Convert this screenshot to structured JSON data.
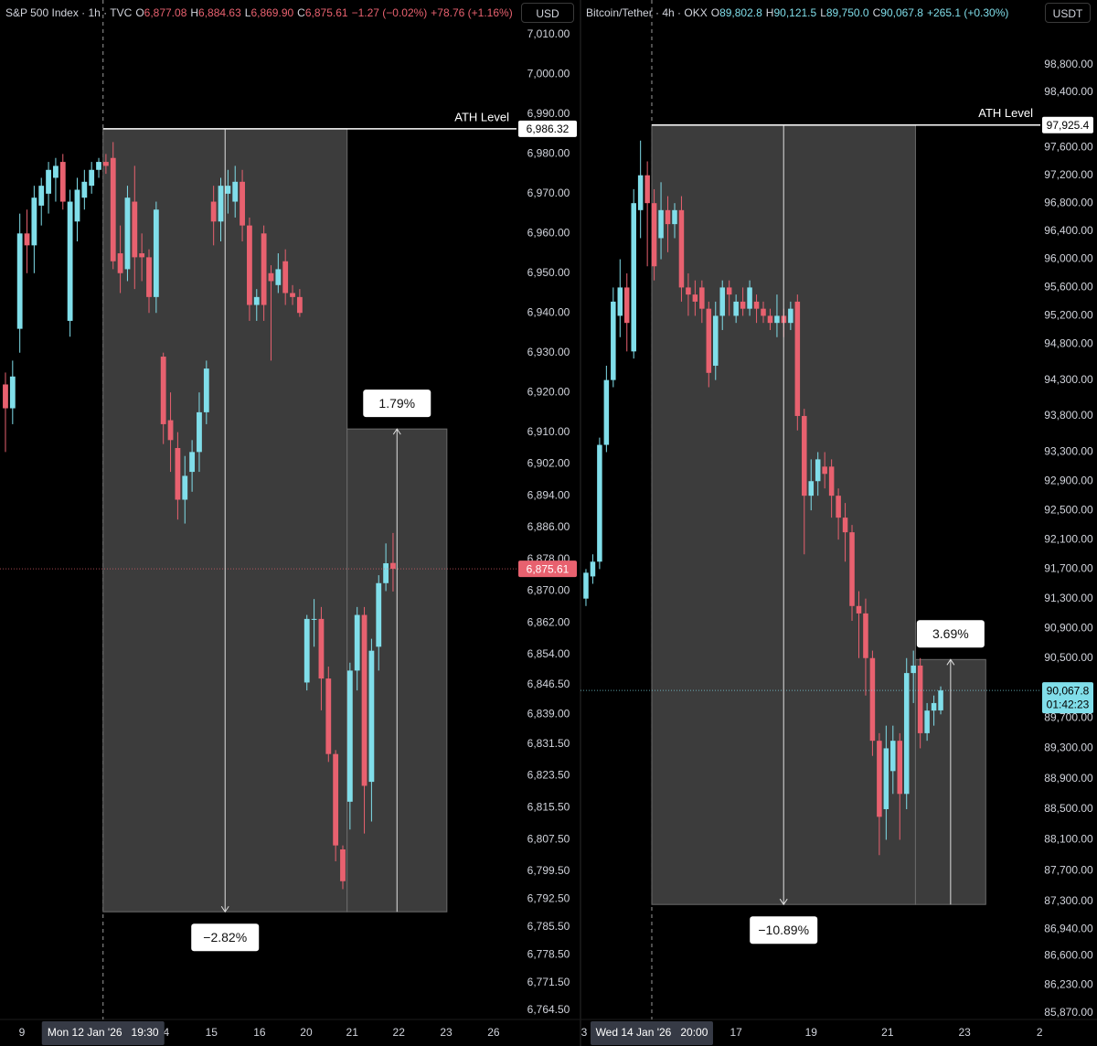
{
  "chart_data": [
    {
      "type": "candlestick",
      "header": {
        "symbol": "S&P 500 Index · 1h · TVC",
        "ohlc": [
          {
            "key": "O",
            "value": "6,877.08"
          },
          {
            "key": "H",
            "value": "6,884.63"
          },
          {
            "key": "L",
            "value": "6,869.90"
          },
          {
            "key": "C",
            "value": "6,875.61"
          }
        ],
        "changes": [
          "−1.27 (−0.02%)",
          "+78.76 (+1.16%)"
        ]
      },
      "currency": "USD",
      "up_color": "#80deea",
      "down_color": "#e8616f",
      "log_scale": false,
      "grid": false,
      "x": [
        0,
        1,
        2,
        3,
        4,
        5,
        6,
        7,
        8,
        9,
        10,
        11,
        12,
        13,
        14,
        15,
        16,
        17,
        18,
        19,
        20,
        21,
        22,
        23,
        24,
        25,
        26,
        27,
        28,
        29,
        30,
        31,
        32,
        33,
        34,
        35,
        36,
        37,
        38,
        39,
        40,
        41,
        42,
        43,
        44,
        45,
        46,
        47,
        48,
        49,
        50,
        51,
        52,
        53,
        54
      ],
      "open": [
        6922,
        6916,
        6936,
        6960,
        6957,
        6967,
        6970,
        6974,
        6978,
        6938,
        6963,
        6969,
        6972,
        6976,
        6978,
        6979,
        6955,
        6951,
        6968,
        6955,
        6954,
        6944,
        6929,
        6913,
        6906,
        6893,
        6900,
        6905,
        6915,
        6968,
        6963,
        6970,
        6968,
        6973,
        6962,
        6942,
        6960,
        6950,
        6947,
        6953,
        6945,
        6944,
        6847,
        6863,
        6863,
        6848,
        6829,
        6805,
        6817,
        6850,
        6864,
        6822,
        6856,
        6872,
        6877.08
      ],
      "high": [
        6925,
        6928,
        6965,
        6966,
        6972,
        6974,
        6978,
        6979,
        6980,
        6971,
        6974,
        6976,
        6978,
        6979,
        6980,
        6983,
        6962,
        6972,
        6977,
        6960,
        6956,
        6968,
        6930,
        6920,
        6910,
        6904,
        6908,
        6920,
        6928,
        6972,
        6974,
        6976,
        6977,
        6976,
        6964,
        6946,
        6962,
        6952,
        6955,
        6956,
        6947,
        6946,
        6864,
        6868,
        6866,
        6851,
        6830,
        6806,
        6852,
        6866,
        6866,
        6858,
        6874,
        6882,
        6884.63
      ],
      "low": [
        6905,
        6912,
        6930,
        6950,
        6950,
        6962,
        6965,
        6968,
        6966,
        6934,
        6958,
        6966,
        6970,
        6974,
        6975,
        6951,
        6945,
        6948,
        6946,
        6948,
        6940,
        6940,
        6907,
        6900,
        6888,
        6887,
        6895,
        6900,
        6912,
        6957,
        6958,
        6965,
        6964,
        6958,
        6938,
        6938,
        6938,
        6928,
        6945,
        6942,
        6942,
        6939,
        6845,
        6856,
        6840,
        6827,
        6802,
        6795,
        6810,
        6845,
        6809,
        6812,
        6850,
        6870,
        6869.9
      ],
      "close": [
        6916,
        6924,
        6960,
        6957,
        6969,
        6972,
        6976,
        6977,
        6968,
        6968,
        6971,
        6973,
        6976,
        6978,
        6977,
        6953,
        6950,
        6969,
        6954,
        6954,
        6944,
        6966,
        6912,
        6908,
        6893,
        6899,
        6905,
        6915,
        6926,
        6963,
        6972,
        6972,
        6973,
        6962,
        6942,
        6944,
        6942,
        6948,
        6951,
        6945,
        6944,
        6940,
        6863,
        6863,
        6848,
        6829,
        6806,
        6797,
        6850,
        6864,
        6821,
        6855,
        6872,
        6877,
        6875.61
      ],
      "xlim": [
        -0.76,
        71.2
      ],
      "xticks": [
        {
          "value": 2.3,
          "label": "9"
        },
        {
          "value": 22.4,
          "label": "4"
        },
        {
          "value": 28.7,
          "label": "15"
        },
        {
          "value": 35.4,
          "label": "16"
        },
        {
          "value": 41.9,
          "label": "20"
        },
        {
          "value": 48.3,
          "label": "21"
        },
        {
          "value": 54.8,
          "label": "22"
        },
        {
          "value": 61.4,
          "label": "23"
        },
        {
          "value": 68.0,
          "label": "26"
        }
      ],
      "ylim": [
        6762.2,
        7012.3
      ],
      "yticks": [
        {
          "value": 7010,
          "label": "7,010.00"
        },
        {
          "value": 7000,
          "label": "7,000.00"
        },
        {
          "value": 6990,
          "label": "6,990.00"
        },
        {
          "value": 6980,
          "label": "6,980.00"
        },
        {
          "value": 6970,
          "label": "6,970.00"
        },
        {
          "value": 6960,
          "label": "6,960.00"
        },
        {
          "value": 6950,
          "label": "6,950.00"
        },
        {
          "value": 6940,
          "label": "6,940.00"
        },
        {
          "value": 6930,
          "label": "6,930.00"
        },
        {
          "value": 6920,
          "label": "6,920.00"
        },
        {
          "value": 6910,
          "label": "6,910.00"
        },
        {
          "value": 6902,
          "label": "6,902.00"
        },
        {
          "value": 6894,
          "label": "6,894.00"
        },
        {
          "value": 6886,
          "label": "6,886.00"
        },
        {
          "value": 6878,
          "label": "6,878.00"
        },
        {
          "value": 6870,
          "label": "6,870.00"
        },
        {
          "value": 6862,
          "label": "6,862.00"
        },
        {
          "value": 6854,
          "label": "6,854.00"
        },
        {
          "value": 6846.5,
          "label": "6,846.50"
        },
        {
          "value": 6839,
          "label": "6,839.00"
        },
        {
          "value": 6831.5,
          "label": "6,831.50"
        },
        {
          "value": 6823.5,
          "label": "6,823.50"
        },
        {
          "value": 6815.5,
          "label": "6,815.50"
        },
        {
          "value": 6807.5,
          "label": "6,807.50"
        },
        {
          "value": 6799.5,
          "label": "6,799.50"
        },
        {
          "value": 6792.5,
          "label": "6,792.50"
        },
        {
          "value": 6785.5,
          "label": "6,785.50"
        },
        {
          "value": 6778.5,
          "label": "6,778.50"
        },
        {
          "value": 6771.5,
          "label": "6,771.50"
        },
        {
          "value": 6764.5,
          "label": "6,764.50"
        }
      ],
      "crosshair": {
        "x": 13.6,
        "label": "Mon 12 Jan '26   19:30"
      },
      "ath": {
        "value": 6986.32,
        "label": "ATH Level",
        "value_label": "6,986.32"
      },
      "last_price": {
        "value": 6875.61,
        "value_label": "6,875.61",
        "color": "#e8616f",
        "text_color": "#ffffff"
      },
      "measures": [
        {
          "x": [
            13.6,
            47.6
          ],
          "from": 6986.32,
          "to": 6789.3,
          "label": "−2.82%"
        },
        {
          "x": [
            47.6,
            61.5
          ],
          "from": 6789.3,
          "to": 6910.8,
          "label": "1.79%"
        }
      ]
    },
    {
      "type": "candlestick",
      "header": {
        "symbol": "Bitcoin/Tether · 4h · OKX",
        "ohlc": [
          {
            "key": "O",
            "value": "89,802.8"
          },
          {
            "key": "H",
            "value": "90,121.5"
          },
          {
            "key": "L",
            "value": "89,750.0"
          },
          {
            "key": "C",
            "value": "90,067.8"
          }
        ],
        "changes": [
          "+265.1 (+0.30%)"
        ]
      },
      "currency": "USDT",
      "up_color": "#80deea",
      "down_color": "#e8616f",
      "log_scale": true,
      "grid": false,
      "x": [
        0,
        1,
        2,
        3,
        4,
        5,
        6,
        7,
        8,
        9,
        10,
        11,
        12,
        13,
        14,
        15,
        16,
        17,
        18,
        19,
        20,
        21,
        22,
        23,
        24,
        25,
        26,
        27,
        28,
        29,
        30,
        31,
        32,
        33,
        34,
        35,
        36,
        37,
        38,
        39,
        40,
        41,
        42,
        43,
        44,
        45,
        46,
        47,
        48,
        49,
        50,
        51,
        52
      ],
      "open": [
        91300,
        91600,
        91800,
        93400,
        94300,
        95200,
        95600,
        94700,
        96700,
        97200,
        96800,
        96300,
        96700,
        96500,
        96700,
        95600,
        95500,
        95600,
        95300,
        94500,
        95200,
        95600,
        95200,
        95400,
        95300,
        95400,
        95300,
        95200,
        95100,
        95200,
        95100,
        95400,
        93800,
        92700,
        92900,
        93100,
        93100,
        92700,
        92400,
        92200,
        91200,
        91100,
        90500,
        89400,
        88500,
        89000,
        89400,
        88700,
        90300,
        90400,
        89500,
        89800,
        89802.8
      ],
      "high": [
        91700,
        91900,
        93500,
        94500,
        95600,
        96000,
        95800,
        97000,
        97700,
        97400,
        97000,
        97100,
        96900,
        96800,
        96900,
        95800,
        95700,
        95700,
        95400,
        95400,
        95700,
        95700,
        95500,
        95600,
        95700,
        95500,
        95400,
        95300,
        95500,
        95300,
        95400,
        95500,
        93900,
        93200,
        93300,
        93300,
        93200,
        92800,
        92600,
        92300,
        91400,
        91300,
        90600,
        89500,
        89600,
        89600,
        89500,
        90500,
        90600,
        90500,
        89900,
        90000,
        90121.5
      ],
      "low": [
        91200,
        91500,
        91700,
        93300,
        94200,
        94900,
        94700,
        94600,
        96300,
        95900,
        95700,
        96000,
        96100,
        96300,
        95400,
        95200,
        95200,
        95100,
        94200,
        94300,
        95000,
        95200,
        95100,
        95200,
        95200,
        95100,
        95100,
        95000,
        94900,
        94900,
        95000,
        93600,
        91900,
        92500,
        92700,
        92800,
        92400,
        92100,
        91800,
        91000,
        90500,
        90000,
        89200,
        87900,
        88100,
        88700,
        88100,
        88500,
        89900,
        89300,
        89400,
        89600,
        89750
      ],
      "close": [
        91650,
        91800,
        93400,
        94300,
        95400,
        95600,
        95100,
        96800,
        97200,
        96800,
        95900,
        96700,
        96500,
        96700,
        95600,
        95500,
        95400,
        95300,
        94400,
        95200,
        95600,
        95500,
        95400,
        95300,
        95600,
        95300,
        95200,
        95100,
        95200,
        95100,
        95300,
        93800,
        92700,
        92900,
        93200,
        93000,
        92700,
        92400,
        92200,
        91200,
        91100,
        90500,
        89400,
        88400,
        89300,
        89400,
        88700,
        90300,
        90400,
        89500,
        89800,
        89900,
        90067.8
      ],
      "xlim": [
        -0.8,
        66.6
      ],
      "xticks": [
        {
          "value": -0.27,
          "label": "3"
        },
        {
          "value": 22.0,
          "label": "17"
        },
        {
          "value": 33.0,
          "label": "19"
        },
        {
          "value": 44.2,
          "label": "21"
        },
        {
          "value": 55.5,
          "label": "23"
        },
        {
          "value": 66.5,
          "label": "2"
        }
      ],
      "ylim": [
        85789,
        99376
      ],
      "yticks": [
        {
          "value": 98800,
          "label": "98,800.00"
        },
        {
          "value": 98400,
          "label": "98,400.00"
        },
        {
          "value": 97600,
          "label": "97,600.00"
        },
        {
          "value": 97200,
          "label": "97,200.00"
        },
        {
          "value": 96800,
          "label": "96,800.00"
        },
        {
          "value": 96400,
          "label": "96,400.00"
        },
        {
          "value": 96000,
          "label": "96,000.00"
        },
        {
          "value": 95600,
          "label": "95,600.00"
        },
        {
          "value": 95200,
          "label": "95,200.00"
        },
        {
          "value": 94800,
          "label": "94,800.00"
        },
        {
          "value": 94300,
          "label": "94,300.00"
        },
        {
          "value": 93800,
          "label": "93,800.00"
        },
        {
          "value": 93300,
          "label": "93,300.00"
        },
        {
          "value": 92900,
          "label": "92,900.00"
        },
        {
          "value": 92500,
          "label": "92,500.00"
        },
        {
          "value": 92100,
          "label": "92,100.00"
        },
        {
          "value": 91700,
          "label": "91,700.00"
        },
        {
          "value": 91300,
          "label": "91,300.00"
        },
        {
          "value": 90900,
          "label": "90,900.00"
        },
        {
          "value": 90500,
          "label": "90,500.00"
        },
        {
          "value": 89700,
          "label": "89,700.00"
        },
        {
          "value": 89300,
          "label": "89,300.00"
        },
        {
          "value": 88900,
          "label": "88,900.00"
        },
        {
          "value": 88500,
          "label": "88,500.00"
        },
        {
          "value": 88100,
          "label": "88,100.00"
        },
        {
          "value": 87700,
          "label": "87,700.00"
        },
        {
          "value": 87300,
          "label": "87,300.00"
        },
        {
          "value": 86940,
          "label": "86,940.00"
        },
        {
          "value": 86600,
          "label": "86,600.00"
        },
        {
          "value": 86230,
          "label": "86,230.00"
        },
        {
          "value": 85870,
          "label": "85,870.00"
        }
      ],
      "crosshair": {
        "x": 9.65,
        "label": "Wed 14 Jan '26   20:00"
      },
      "ath": {
        "value": 97925.4,
        "label": "ATH Level",
        "value_label": "97,925.4"
      },
      "last_price": {
        "value": 90067.8,
        "value_label": "90,067.8",
        "countdown": "01:42:23",
        "color": "#80deea",
        "text_color": "#000000"
      },
      "measures": [
        {
          "x": [
            9.65,
            48.3
          ],
          "from": 97925.4,
          "to": 87261,
          "label": "−10.89%"
        },
        {
          "x": [
            48.3,
            58.6
          ],
          "from": 87261,
          "to": 90481,
          "label": "3.69%"
        }
      ]
    }
  ]
}
